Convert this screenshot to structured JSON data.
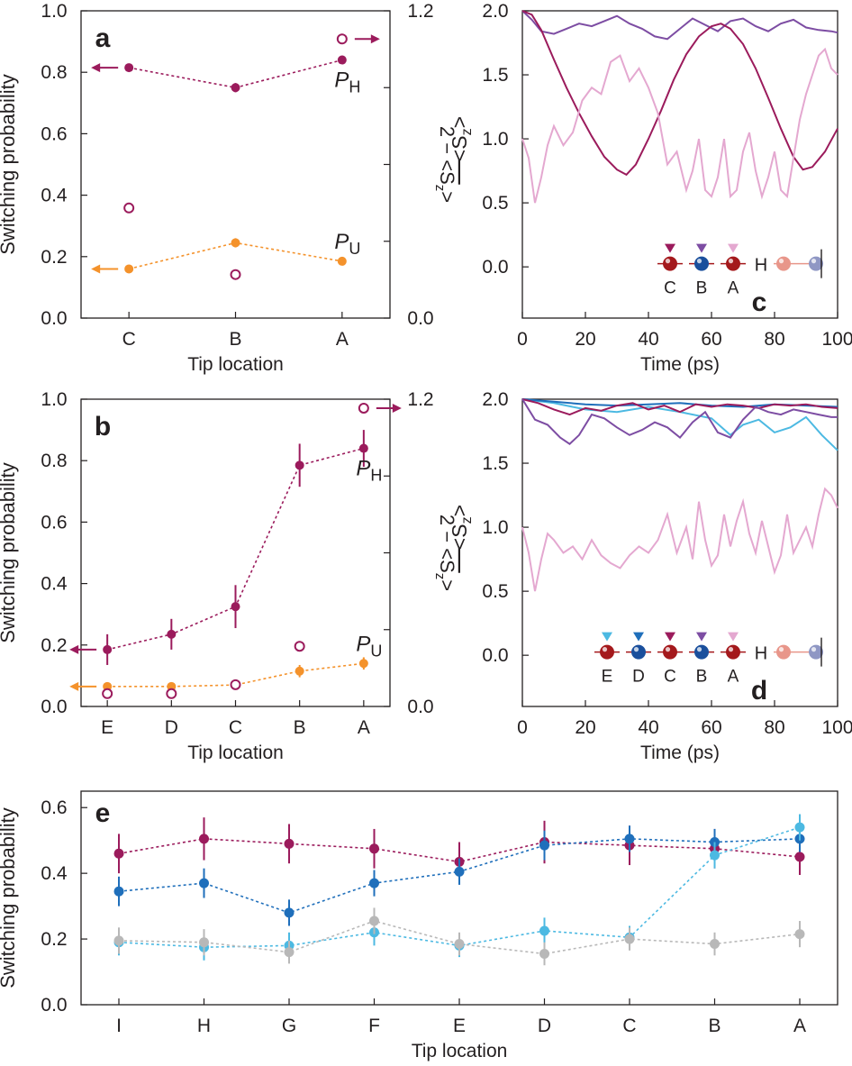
{
  "colors": {
    "magenta": "#9b1b5c",
    "orange": "#f4922b",
    "purple": "#7d4da3",
    "pink": "#e4a8d0",
    "blue": "#1f6fbb",
    "cyan": "#4cb9e2",
    "gray": "#b8b8b8",
    "darkred": "#a4191c",
    "darkblue": "#1a4f9c",
    "salmon": "#e8968a",
    "lavender": "#8f97c4"
  },
  "chart_data": [
    {
      "panel": "a",
      "type": "scatter",
      "categories": [
        "C",
        "B",
        "A"
      ],
      "xlabel": "Tip location",
      "ylabel": "Switching probability",
      "ylim": [
        0,
        1
      ],
      "yticks": [
        "0.0",
        "0.2",
        "0.4",
        "0.6",
        "0.8",
        "1.0"
      ],
      "y2lim": [
        0,
        1.2
      ],
      "y2ticks": [
        "0.0",
        "1.2"
      ],
      "y2label": "2 − <S_z>",
      "series": [
        {
          "name": "P_H",
          "color": "magenta",
          "values": [
            0.815,
            0.75,
            0.84
          ],
          "errors": [
            0.01,
            0.015,
            0.01
          ],
          "arrow": "left"
        },
        {
          "name": "P_U",
          "color": "orange",
          "values": [
            0.16,
            0.245,
            0.185
          ],
          "errors": [
            0.01,
            0.015,
            0.01
          ],
          "arrow": "left"
        },
        {
          "name": "open",
          "color": "magenta",
          "values": [
            0.43,
            0.17,
            1.09
          ],
          "axis": "right",
          "arrow_index": 2
        }
      ],
      "series_labels": [
        {
          "text": "P",
          "sub": "H",
          "color": "magenta"
        },
        {
          "text": "P",
          "sub": "U",
          "color": "orange"
        }
      ]
    },
    {
      "panel": "b",
      "type": "scatter",
      "categories": [
        "E",
        "D",
        "C",
        "B",
        "A"
      ],
      "xlabel": "Tip location",
      "ylabel": "Switching probability",
      "ylim": [
        0,
        1
      ],
      "yticks": [
        "0.0",
        "0.2",
        "0.4",
        "0.6",
        "0.8",
        "1.0"
      ],
      "y2lim": [
        0,
        1.2
      ],
      "y2ticks": [
        "0.0",
        "1.2"
      ],
      "y2label": "2 − <S_z>",
      "series": [
        {
          "name": "P_H",
          "color": "magenta",
          "values": [
            0.185,
            0.235,
            0.325,
            0.785,
            0.84
          ],
          "errors": [
            0.05,
            0.05,
            0.07,
            0.07,
            0.06
          ],
          "arrow": "left"
        },
        {
          "name": "P_U",
          "color": "orange",
          "values": [
            0.065,
            0.065,
            0.07,
            0.115,
            0.14
          ],
          "errors": [
            0.01,
            0.01,
            0.01,
            0.02,
            0.02
          ],
          "arrow": "left"
        },
        {
          "name": "open",
          "color": "magenta",
          "values": [
            0.05,
            0.05,
            0.085,
            0.235,
            1.165
          ],
          "axis": "right",
          "arrow_index": 4
        }
      ],
      "series_labels": [
        {
          "text": "P",
          "sub": "H",
          "color": "magenta"
        },
        {
          "text": "P",
          "sub": "U",
          "color": "orange"
        }
      ]
    },
    {
      "panel": "c",
      "type": "line",
      "xlabel": "Time (ps)",
      "ylabel": "<S_z>",
      "xlim": [
        0,
        100
      ],
      "ylim": [
        -0.4,
        2.0
      ],
      "xticks": [
        "0",
        "20",
        "40",
        "60",
        "80",
        "100"
      ],
      "yticks": [
        "0.0",
        "0.5",
        "1.0",
        "1.5",
        "2.0"
      ],
      "legend_atoms": [
        "C",
        "B",
        "A",
        "H"
      ],
      "series": [
        {
          "color": "purple",
          "x": [
            0,
            3,
            6,
            10,
            14,
            18,
            22,
            26,
            30,
            34,
            38,
            42,
            46,
            50,
            54,
            58,
            62,
            66,
            70,
            74,
            78,
            82,
            86,
            90,
            94,
            98,
            100
          ],
          "y": [
            2.0,
            1.93,
            1.84,
            1.82,
            1.86,
            1.9,
            1.88,
            1.92,
            1.96,
            1.9,
            1.86,
            1.8,
            1.78,
            1.86,
            1.94,
            1.89,
            1.84,
            1.92,
            1.94,
            1.88,
            1.84,
            1.9,
            1.93,
            1.87,
            1.85,
            1.84,
            1.83
          ]
        },
        {
          "color": "magenta",
          "x": [
            0,
            3,
            6,
            10,
            14,
            18,
            22,
            26,
            30,
            33,
            36,
            40,
            44,
            48,
            52,
            56,
            60,
            63,
            66,
            70,
            74,
            78,
            82,
            86,
            89,
            92,
            96,
            100
          ],
          "y": [
            2.0,
            1.97,
            1.85,
            1.62,
            1.4,
            1.2,
            1.02,
            0.86,
            0.76,
            0.72,
            0.8,
            1.0,
            1.22,
            1.46,
            1.66,
            1.8,
            1.88,
            1.9,
            1.86,
            1.74,
            1.55,
            1.32,
            1.08,
            0.86,
            0.76,
            0.78,
            0.9,
            1.08
          ]
        },
        {
          "color": "pink",
          "x": [
            0,
            2,
            4,
            6,
            8,
            10,
            13,
            16,
            19,
            22,
            25,
            28,
            31,
            34,
            37,
            40,
            43,
            46,
            49,
            52,
            54,
            56,
            58,
            60,
            62,
            64,
            66,
            68,
            70,
            72,
            74,
            76,
            78,
            80,
            82,
            84,
            86,
            88,
            90,
            92,
            94,
            96,
            98,
            100
          ],
          "y": [
            1.0,
            0.85,
            0.5,
            0.7,
            0.95,
            1.1,
            0.95,
            1.05,
            1.3,
            1.4,
            1.35,
            1.6,
            1.65,
            1.45,
            1.55,
            1.4,
            1.2,
            0.8,
            0.9,
            0.6,
            0.75,
            1.0,
            0.6,
            0.55,
            0.7,
            1.0,
            0.55,
            0.6,
            0.9,
            1.05,
            0.75,
            0.55,
            0.7,
            0.9,
            0.6,
            0.55,
            0.85,
            1.15,
            1.35,
            1.5,
            1.65,
            1.7,
            1.55,
            1.5
          ]
        }
      ]
    },
    {
      "panel": "d",
      "type": "line",
      "xlabel": "Time (ps)",
      "ylabel": "<S_z>",
      "xlim": [
        0,
        100
      ],
      "ylim": [
        -0.4,
        2.0
      ],
      "xticks": [
        "0",
        "20",
        "40",
        "60",
        "80",
        "100"
      ],
      "yticks": [
        "0.0",
        "0.5",
        "1.0",
        "1.5",
        "2.0"
      ],
      "legend_atoms": [
        "E",
        "D",
        "C",
        "B",
        "A",
        "H"
      ],
      "series": [
        {
          "color": "cyan",
          "x": [
            0,
            10,
            20,
            30,
            40,
            50,
            60,
            66,
            70,
            75,
            80,
            85,
            90,
            95,
            100
          ],
          "y": [
            2.0,
            1.97,
            1.92,
            1.9,
            1.94,
            1.9,
            1.85,
            1.72,
            1.8,
            1.84,
            1.74,
            1.78,
            1.86,
            1.72,
            1.6
          ]
        },
        {
          "color": "blue",
          "x": [
            0,
            10,
            20,
            30,
            40,
            50,
            60,
            70,
            80,
            90,
            100
          ],
          "y": [
            2.0,
            1.98,
            1.96,
            1.95,
            1.96,
            1.97,
            1.95,
            1.94,
            1.96,
            1.95,
            1.94
          ]
        },
        {
          "color": "magenta",
          "x": [
            0,
            5,
            10,
            15,
            20,
            25,
            30,
            35,
            40,
            45,
            50,
            55,
            60,
            65,
            70,
            75,
            80,
            85,
            90,
            95,
            100
          ],
          "y": [
            2.0,
            1.97,
            1.92,
            1.88,
            1.93,
            1.91,
            1.95,
            1.97,
            1.92,
            1.95,
            1.9,
            1.96,
            1.94,
            1.96,
            1.95,
            1.93,
            1.96,
            1.95,
            1.96,
            1.94,
            1.93
          ]
        },
        {
          "color": "purple",
          "x": [
            0,
            4,
            8,
            12,
            15,
            18,
            22,
            26,
            30,
            34,
            38,
            42,
            46,
            50,
            54,
            58,
            62,
            66,
            70,
            74,
            78,
            82,
            86,
            90,
            94,
            98,
            100
          ],
          "y": [
            2.0,
            1.84,
            1.8,
            1.7,
            1.65,
            1.72,
            1.88,
            1.85,
            1.78,
            1.72,
            1.76,
            1.82,
            1.78,
            1.7,
            1.82,
            1.9,
            1.74,
            1.7,
            1.84,
            1.94,
            1.9,
            1.88,
            1.92,
            1.9,
            1.88,
            1.86,
            1.86
          ]
        },
        {
          "color": "pink",
          "x": [
            0,
            2,
            4,
            6,
            8,
            10,
            13,
            16,
            19,
            22,
            25,
            28,
            31,
            34,
            37,
            40,
            43,
            46,
            49,
            52,
            54,
            56,
            58,
            60,
            62,
            64,
            66,
            68,
            70,
            72,
            74,
            76,
            78,
            80,
            82,
            84,
            86,
            88,
            90,
            92,
            94,
            96,
            98,
            100
          ],
          "y": [
            1.0,
            0.8,
            0.5,
            0.75,
            0.95,
            0.9,
            0.8,
            0.85,
            0.75,
            0.9,
            0.78,
            0.72,
            0.68,
            0.78,
            0.85,
            0.8,
            0.9,
            1.1,
            0.8,
            1.0,
            0.75,
            1.2,
            0.9,
            0.7,
            0.78,
            1.1,
            0.85,
            1.05,
            1.2,
            0.95,
            0.8,
            1.05,
            0.85,
            0.65,
            0.78,
            1.1,
            0.8,
            0.9,
            1.0,
            0.85,
            1.1,
            1.3,
            1.25,
            1.15
          ]
        }
      ]
    },
    {
      "panel": "e",
      "type": "line",
      "categories": [
        "I",
        "H",
        "G",
        "F",
        "E",
        "D",
        "C",
        "B",
        "A"
      ],
      "xlabel": "Tip location",
      "ylabel": "Switching probability",
      "ylim": [
        0,
        0.65
      ],
      "yticks": [
        "0.0",
        "0.2",
        "0.4",
        "0.6"
      ],
      "series": [
        {
          "color": "magenta",
          "values": [
            0.46,
            0.505,
            0.49,
            0.475,
            0.435,
            0.495,
            0.485,
            0.475,
            0.45
          ],
          "errors": [
            0.06,
            0.065,
            0.06,
            0.06,
            0.06,
            0.065,
            0.06,
            0.06,
            0.055
          ]
        },
        {
          "color": "blue",
          "values": [
            0.345,
            0.37,
            0.28,
            0.37,
            0.405,
            0.485,
            0.505,
            0.495,
            0.505
          ],
          "errors": [
            0.045,
            0.045,
            0.04,
            0.04,
            0.04,
            0.045,
            0.04,
            0.04,
            0.04
          ]
        },
        {
          "color": "cyan",
          "values": [
            0.19,
            0.175,
            0.18,
            0.22,
            0.18,
            0.225,
            0.205,
            0.455,
            0.54
          ],
          "errors": [
            0.04,
            0.04,
            0.04,
            0.04,
            0.035,
            0.04,
            0.035,
            0.04,
            0.04
          ]
        },
        {
          "color": "gray",
          "values": [
            0.195,
            0.19,
            0.16,
            0.255,
            0.185,
            0.155,
            0.2,
            0.185,
            0.215
          ],
          "errors": [
            0.04,
            0.04,
            0.035,
            0.04,
            0.035,
            0.035,
            0.035,
            0.035,
            0.04
          ]
        }
      ]
    }
  ]
}
